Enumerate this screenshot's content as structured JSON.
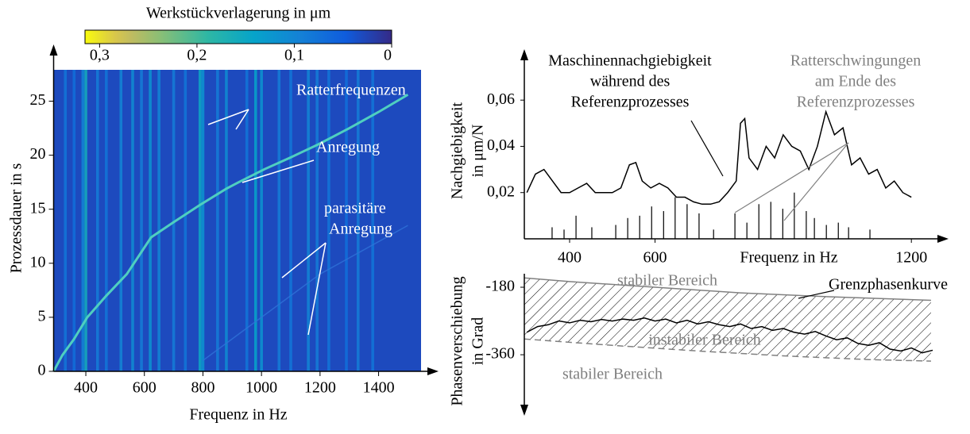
{
  "chart_data": [
    {
      "type": "heatmap",
      "title": "Werkstückverlagerung in μm",
      "xlabel": "Frequenz in Hz",
      "ylabel": "Prozessdauer  in s",
      "xlim": [
        290,
        1545
      ],
      "xticks": [
        400,
        600,
        800,
        1000,
        1200,
        1400
      ],
      "ylim": [
        0,
        27.9
      ],
      "yticks": [
        0,
        5,
        10,
        15,
        20,
        25
      ],
      "clim": [
        0.315,
        0
      ],
      "cticks": [
        {
          "value": 0.3,
          "label": "0,3"
        },
        {
          "value": 0.2,
          "label": "0,2"
        },
        {
          "value": 0.1,
          "label": "0,1"
        },
        0
      ],
      "background_value": 0.03,
      "lines": {
        "x": [
          330,
          360,
          390,
          400,
          440,
          470,
          520,
          560,
          590,
          620,
          650,
          700,
          740,
          790,
          800,
          850,
          880,
          950,
          980,
          1000,
          1060,
          1100,
          1160,
          1190,
          1230,
          1290,
          1330,
          1380
        ],
        "values": [
          0.08,
          0.07,
          0.1,
          0.16,
          0.09,
          0.08,
          0.1,
          0.11,
          0.09,
          0.12,
          0.1,
          0.09,
          0.08,
          0.15,
          0.12,
          0.09,
          0.11,
          0.08,
          0.14,
          0.12,
          0.09,
          0.08,
          0.1,
          0.09,
          0.08,
          0.07,
          0.09,
          0.08
        ]
      },
      "series": [
        {
          "x": [
            290,
            320,
            360,
            405,
            470,
            540,
            623,
            700,
            790,
            880,
            922,
            1010,
            1100,
            1194,
            1300,
            1400,
            1500
          ],
          "values": [
            0,
            1.5,
            3,
            5,
            7,
            9,
            12.4,
            13.8,
            15.4,
            16.9,
            17.5,
            18.7,
            19.8,
            21,
            22.5,
            24,
            25.6
          ],
          "color": "#4fcfc0"
        },
        {
          "x": [
            800,
            900,
            1000,
            1100,
            1200,
            1300,
            1400,
            1500
          ],
          "values": [
            1,
            3,
            5,
            7,
            9,
            10.5,
            12,
            13.5
          ],
          "color": "#2f72d8"
        }
      ],
      "annotations": [
        [
          "Ratterfrequenzen"
        ],
        [
          "Anregung"
        ],
        [
          "parasitäre",
          "Anregung"
        ]
      ]
    },
    {
      "type": "line",
      "xlabel": "Frequenz in Hz",
      "ylabel": [
        "Nachgiebigkeit",
        "in  μm/N"
      ],
      "xlim": [
        294,
        1261
      ],
      "xticks": [
        400,
        600,
        1200
      ],
      "ylim": [
        0,
        0.081
      ],
      "yticks": [
        {
          "value": 0.02,
          "label": "0,02"
        },
        {
          "value": 0.04,
          "label": "0,04"
        },
        {
          "value": 0.06,
          "label": "0,06"
        }
      ],
      "series": [
        {
          "x": [
            300,
            320,
            340,
            360,
            380,
            400,
            420,
            440,
            460,
            480,
            500,
            520,
            540,
            555,
            570,
            590,
            610,
            630,
            650,
            670,
            690,
            710,
            730,
            750,
            770,
            790,
            800,
            810,
            820,
            840,
            860,
            880,
            900,
            920,
            940,
            960,
            980,
            1000,
            1020,
            1040,
            1060,
            1080,
            1100,
            1120,
            1140,
            1160,
            1180,
            1200
          ],
          "values": [
            0.02,
            0.028,
            0.03,
            0.025,
            0.02,
            0.02,
            0.022,
            0.024,
            0.02,
            0.02,
            0.02,
            0.022,
            0.032,
            0.033,
            0.025,
            0.022,
            0.024,
            0.022,
            0.018,
            0.018,
            0.016,
            0.015,
            0.015,
            0.016,
            0.02,
            0.025,
            0.05,
            0.052,
            0.035,
            0.03,
            0.04,
            0.035,
            0.045,
            0.04,
            0.038,
            0.03,
            0.04,
            0.055,
            0.045,
            0.048,
            0.032,
            0.035,
            0.028,
            0.03,
            0.022,
            0.025,
            0.02,
            0.018
          ],
          "color": "#000000"
        },
        {
          "type": "stem",
          "x": [
            359,
            387,
            415,
            452,
            508,
            536,
            564,
            592,
            620,
            647,
            675,
            703,
            737,
            787,
            815,
            843,
            871,
            899,
            926,
            954,
            973,
            1001,
            1029,
            1053,
            1103
          ],
          "values": [
            0.005,
            0.004,
            0.01,
            0.005,
            0.006,
            0.009,
            0.01,
            0.014,
            0.012,
            0.018,
            0.015,
            0.011,
            0.004,
            0.011,
            0.007,
            0.015,
            0.016,
            0.013,
            0.02,
            0.012,
            0.009,
            0.006,
            0.007,
            0.005,
            0.004
          ],
          "color": "#000000"
        }
      ],
      "annotations": [
        {
          "lines": [
            "Maschinennachgiebigkeit",
            "während des",
            "Referenzprozesses"
          ],
          "color": "#000000"
        },
        {
          "lines": [
            "Ratterschwingungen",
            "am Ende des",
            "Referenzprozesses"
          ],
          "color": "#808080"
        }
      ]
    },
    {
      "type": "line",
      "ylabel": [
        "Phasenverschiebung",
        "in Grad"
      ],
      "xlim": [
        294,
        1261
      ],
      "ylim": [
        -510,
        -144
      ],
      "yticks": [
        -180,
        -360
      ],
      "hatch": true,
      "series": [
        {
          "name": "Grenzphasenkurve",
          "x": [
            294,
            400,
            600,
            800,
            1000,
            1200,
            1246
          ],
          "values": [
            -155,
            -165,
            -180,
            -195,
            -205,
            -213,
            -215
          ],
          "color": "#808080"
        },
        {
          "x": [
            294,
            500,
            700,
            900,
            1100,
            1246
          ],
          "values": [
            -318,
            -335,
            -350,
            -363,
            -373,
            -377
          ],
          "color": "#808080",
          "dashed": true
        },
        {
          "x": [
            300,
            325,
            350,
            375,
            400,
            425,
            450,
            475,
            500,
            525,
            550,
            575,
            600,
            625,
            650,
            675,
            700,
            725,
            750,
            775,
            800,
            825,
            850,
            875,
            900,
            925,
            950,
            975,
            1000,
            1025,
            1050,
            1075,
            1100,
            1125,
            1150,
            1175,
            1200,
            1225,
            1250
          ],
          "values": [
            -300,
            -285,
            -280,
            -270,
            -275,
            -268,
            -272,
            -266,
            -270,
            -265,
            -268,
            -262,
            -270,
            -265,
            -275,
            -268,
            -278,
            -272,
            -280,
            -285,
            -278,
            -290,
            -285,
            -295,
            -290,
            -300,
            -305,
            -298,
            -310,
            -320,
            -315,
            -330,
            -335,
            -328,
            -345,
            -350,
            -342,
            -355,
            -348
          ],
          "color": "#000000"
        }
      ],
      "annotations": [
        "stabiler Bereich",
        "instabiler Bereich",
        "stabiler Bereich"
      ]
    }
  ]
}
